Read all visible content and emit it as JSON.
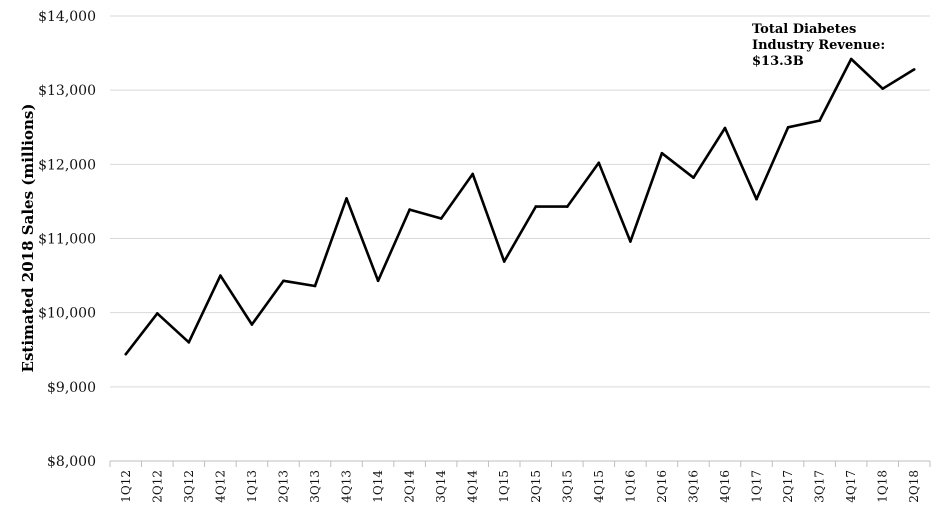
{
  "chart_data": {
    "type": "line",
    "ylabel": "Estimated 2018 Sales (millions)",
    "xlabel": "",
    "ylim": [
      8000,
      14000
    ],
    "y_ticks": [
      8000,
      9000,
      10000,
      11000,
      12000,
      13000,
      14000
    ],
    "y_tick_labels": [
      "$8,000",
      "$9,000",
      "$10,000",
      "$11,000",
      "$12,000",
      "$13,000",
      "$14,000"
    ],
    "grid": true,
    "categories": [
      "1Q12",
      "2Q12",
      "3Q12",
      "4Q12",
      "1Q13",
      "2Q13",
      "3Q13",
      "4Q13",
      "1Q14",
      "2Q14",
      "3Q14",
      "4Q14",
      "1Q15",
      "2Q15",
      "3Q15",
      "4Q15",
      "1Q16",
      "2Q16",
      "3Q16",
      "4Q16",
      "1Q17",
      "2Q17",
      "3Q17",
      "4Q17",
      "1Q18",
      "2Q18"
    ],
    "series": [
      {
        "values": [
          9440,
          9990,
          9600,
          10500,
          9840,
          10430,
          10360,
          11540,
          10430,
          11390,
          11270,
          11870,
          10690,
          11430,
          11430,
          12020,
          10960,
          12150,
          11820,
          12490,
          11530,
          12500,
          12590,
          13420,
          13020,
          13280
        ]
      }
    ],
    "annotation": {
      "lines": [
        "Total Diabetes",
        "Industry Revenue:",
        "$13.3B"
      ]
    },
    "line_color": "#000000"
  }
}
